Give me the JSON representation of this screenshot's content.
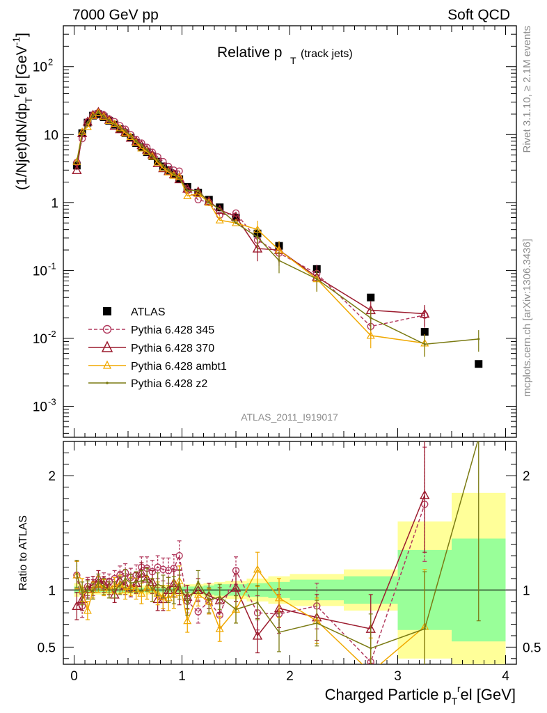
{
  "header": {
    "left": "7000 GeV pp",
    "right": "Soft QCD"
  },
  "side_labels": {
    "rivet": "Rivet 3.1.10, ≥ 2.1M events",
    "source": "mcplots.cern.ch [arXiv:1306.3436]"
  },
  "plot_title": {
    "main": "Relative p",
    "sub": "T",
    "suffix": "(track jets)"
  },
  "analysis_id": "ATLAS_2011_I919017",
  "y_label_top": "(1/Njet)dN/dp_T^rel [GeV^-1]",
  "y_label_ratio": "Ratio to ATLAS",
  "x_label": "Charged Particle p_T^rel [GeV]",
  "colors": {
    "data": "#000000",
    "p345": "#b23a5e",
    "p370": "#9c1b2e",
    "ambt1": "#f0a800",
    "z2": "#7a7a12",
    "band_outer": "#ffff99",
    "band_inner": "#99ff99"
  },
  "chart_data": [
    {
      "type": "scatter",
      "panel": "main",
      "title": "Relative pT (track jets)",
      "xlabel": "Charged Particle p_T^rel [GeV]",
      "ylabel": "(1/Njet)dN/dp_T^rel [GeV^-1]",
      "xlim": [
        -0.1,
        4.1
      ],
      "ylim": [
        0.00035,
        400
      ],
      "yscale": "log",
      "y_ticks": [
        "10^-3",
        "10^-2",
        "10^-1",
        "1",
        "10",
        "10^2"
      ],
      "x_ticks": [
        "0",
        "1",
        "2",
        "3",
        "4"
      ],
      "legend_position": "lower-left",
      "series": [
        {
          "name": "ATLAS",
          "style": "square",
          "x": [
            0.025,
            0.075,
            0.125,
            0.175,
            0.225,
            0.275,
            0.325,
            0.375,
            0.425,
            0.475,
            0.525,
            0.575,
            0.625,
            0.675,
            0.725,
            0.775,
            0.825,
            0.875,
            0.925,
            0.975,
            1.05,
            1.15,
            1.25,
            1.35,
            1.5,
            1.7,
            1.9,
            2.25,
            2.75,
            3.25,
            3.75
          ],
          "y": [
            3.5,
            10.5,
            15,
            19,
            20,
            18,
            16,
            14,
            12,
            10.5,
            9,
            7.5,
            6.5,
            5.5,
            4.8,
            4.0,
            3.4,
            3.0,
            2.6,
            2.2,
            1.7,
            1.4,
            1.1,
            0.85,
            0.6,
            0.35,
            0.23,
            0.105,
            0.04,
            0.0125,
            0.0042
          ]
        },
        {
          "name": "Pythia 6.428 345",
          "style": "circle-dashed",
          "x": [
            0.025,
            0.075,
            0.125,
            0.175,
            0.225,
            0.275,
            0.325,
            0.375,
            0.425,
            0.475,
            0.525,
            0.575,
            0.625,
            0.675,
            0.725,
            0.775,
            0.825,
            0.875,
            0.925,
            0.975,
            1.05,
            1.15,
            1.25,
            1.35,
            1.5,
            1.7,
            1.9,
            2.25,
            2.75,
            3.25
          ],
          "y": [
            3.9,
            8.7,
            15.5,
            19.5,
            21,
            19.5,
            17,
            15.5,
            13.5,
            12,
            10,
            8.5,
            7.5,
            6.5,
            5.5,
            4.7,
            4.0,
            3.4,
            3.0,
            2.9,
            1.5,
            1.1,
            1.0,
            0.65,
            0.7,
            0.28,
            0.18,
            0.09,
            0.015,
            0.022
          ]
        },
        {
          "name": "Pythia 6.428 370",
          "style": "triangle-solid",
          "x": [
            0.025,
            0.075,
            0.125,
            0.175,
            0.225,
            0.275,
            0.325,
            0.375,
            0.425,
            0.475,
            0.525,
            0.575,
            0.625,
            0.675,
            0.725,
            0.775,
            0.825,
            0.875,
            0.925,
            0.975,
            1.05,
            1.15,
            1.25,
            1.35,
            1.5,
            1.7,
            1.9,
            2.25,
            2.75,
            3.25
          ],
          "y": [
            3.0,
            10.5,
            15.5,
            19.5,
            21.5,
            19,
            16.5,
            13.5,
            12,
            11,
            9,
            8,
            7,
            6,
            5.1,
            3.8,
            3.2,
            2.9,
            2.6,
            2.2,
            1.6,
            1.45,
            1.05,
            0.78,
            0.62,
            0.21,
            0.2,
            0.08,
            0.026,
            0.023
          ]
        },
        {
          "name": "Pythia 6.428 ambt1",
          "style": "triangle-solid",
          "x": [
            0.025,
            0.075,
            0.125,
            0.175,
            0.225,
            0.275,
            0.325,
            0.375,
            0.425,
            0.475,
            0.525,
            0.575,
            0.625,
            0.675,
            0.725,
            0.775,
            0.825,
            0.875,
            0.925,
            0.975,
            1.05,
            1.15,
            1.25,
            1.35,
            1.5,
            1.7,
            1.9,
            2.25,
            2.75,
            3.25
          ],
          "y": [
            4.0,
            11,
            13,
            19,
            21,
            18.5,
            16,
            14.5,
            12.5,
            10.5,
            9.3,
            7.6,
            6.3,
            5.6,
            4.8,
            3.9,
            3.2,
            2.8,
            2.5,
            2.4,
            1.25,
            1.35,
            1.0,
            0.55,
            0.5,
            0.4,
            0.2,
            0.075,
            0.011,
            0.0085
          ]
        },
        {
          "name": "Pythia 6.428 z2",
          "style": "dot-solid",
          "x": [
            0.025,
            0.075,
            0.125,
            0.175,
            0.225,
            0.275,
            0.325,
            0.375,
            0.425,
            0.475,
            0.525,
            0.575,
            0.625,
            0.675,
            0.725,
            0.775,
            0.825,
            0.875,
            0.925,
            0.975,
            1.05,
            1.15,
            1.25,
            1.35,
            1.5,
            1.7,
            1.9,
            2.25,
            2.75,
            3.25,
            3.75
          ],
          "y": [
            4.0,
            10.2,
            15,
            18.8,
            21.5,
            18.5,
            16,
            14,
            12.5,
            11.5,
            9.5,
            8,
            7,
            6,
            4.8,
            4.2,
            3.5,
            3.0,
            2.6,
            2.3,
            1.5,
            1.5,
            1.0,
            0.8,
            0.5,
            0.31,
            0.14,
            0.075,
            0.02,
            0.0082,
            0.0098
          ]
        }
      ]
    },
    {
      "type": "line",
      "panel": "ratio",
      "ylabel": "Ratio to ATLAS",
      "xlim": [
        -0.1,
        4.1
      ],
      "ylim": [
        0.35,
        2.3
      ],
      "y_ticks": [
        "0.5",
        "1",
        "2"
      ],
      "reference_line": 1,
      "bands": {
        "x_edges": [
          0,
          0.05,
          0.1,
          0.15,
          0.2,
          0.25,
          0.3,
          0.35,
          0.4,
          0.45,
          0.5,
          0.55,
          0.6,
          0.65,
          0.7,
          0.75,
          0.8,
          0.85,
          0.9,
          0.95,
          1.0,
          1.1,
          1.2,
          1.3,
          1.4,
          1.6,
          1.8,
          2.0,
          2.5,
          3.0,
          3.5,
          4.0
        ],
        "outer_half_width": [
          0.06,
          0.04,
          0.04,
          0.04,
          0.04,
          0.04,
          0.04,
          0.04,
          0.04,
          0.04,
          0.04,
          0.04,
          0.04,
          0.04,
          0.04,
          0.04,
          0.04,
          0.04,
          0.04,
          0.04,
          0.05,
          0.05,
          0.06,
          0.07,
          0.08,
          0.1,
          0.12,
          0.14,
          0.18,
          0.6,
          0.85
        ],
        "inner_half_width": [
          0.03,
          0.02,
          0.02,
          0.02,
          0.02,
          0.02,
          0.02,
          0.02,
          0.02,
          0.02,
          0.02,
          0.02,
          0.02,
          0.02,
          0.02,
          0.02,
          0.02,
          0.02,
          0.02,
          0.02,
          0.03,
          0.03,
          0.04,
          0.05,
          0.05,
          0.06,
          0.07,
          0.09,
          0.12,
          0.35,
          0.45
        ]
      },
      "series": [
        {
          "name": "Pythia 6.428 345",
          "x": [
            0.025,
            0.075,
            0.125,
            0.175,
            0.225,
            0.275,
            0.325,
            0.375,
            0.425,
            0.475,
            0.525,
            0.575,
            0.625,
            0.675,
            0.725,
            0.775,
            0.825,
            0.875,
            0.925,
            0.975,
            1.05,
            1.15,
            1.25,
            1.35,
            1.5,
            1.7,
            1.9,
            2.25,
            2.75,
            3.25
          ],
          "y": [
            1.13,
            0.86,
            1.03,
            1.02,
            1.05,
            1.08,
            1.07,
            1.1,
            1.13,
            1.15,
            1.11,
            1.13,
            1.2,
            1.19,
            1.16,
            1.2,
            1.18,
            1.17,
            1.19,
            1.3,
            0.9,
            0.81,
            0.9,
            0.78,
            1.17,
            0.8,
            0.79,
            0.86,
            0.37,
            1.75
          ],
          "err": [
            0.12,
            0.1,
            0.08,
            0.07,
            0.07,
            0.07,
            0.07,
            0.07,
            0.08,
            0.08,
            0.08,
            0.09,
            0.09,
            0.1,
            0.1,
            0.1,
            0.1,
            0.11,
            0.12,
            0.13,
            0.1,
            0.1,
            0.11,
            0.11,
            0.12,
            0.15,
            0.17,
            0.2,
            0.3,
            0.5
          ]
        },
        {
          "name": "Pythia 6.428 370",
          "x": [
            0.025,
            0.075,
            0.125,
            0.175,
            0.225,
            0.275,
            0.325,
            0.375,
            0.425,
            0.475,
            0.525,
            0.575,
            0.625,
            0.675,
            0.725,
            0.775,
            0.825,
            0.875,
            0.925,
            0.975,
            1.05,
            1.15,
            1.25,
            1.35,
            1.5,
            1.7,
            1.9,
            2.25,
            2.75,
            3.25
          ],
          "y": [
            0.86,
            0.92,
            1.01,
            1.05,
            1.1,
            1.05,
            1.03,
            0.96,
            1.08,
            1.04,
            1.02,
            1.06,
            1.15,
            1.1,
            1.07,
            0.92,
            0.92,
            1.0,
            1.06,
            1.0,
            0.94,
            1.0,
            0.95,
            0.91,
            1.02,
            0.6,
            0.84,
            0.76,
            0.66,
            1.83
          ],
          "err": [
            0.12,
            0.1,
            0.08,
            0.07,
            0.07,
            0.07,
            0.07,
            0.07,
            0.08,
            0.08,
            0.08,
            0.09,
            0.09,
            0.1,
            0.1,
            0.1,
            0.1,
            0.11,
            0.12,
            0.13,
            0.1,
            0.1,
            0.11,
            0.11,
            0.12,
            0.15,
            0.17,
            0.2,
            0.3,
            0.5
          ]
        },
        {
          "name": "Pythia 6.428 ambt1",
          "x": [
            0.025,
            0.075,
            0.125,
            0.175,
            0.225,
            0.275,
            0.325,
            0.375,
            0.425,
            0.475,
            0.525,
            0.575,
            0.625,
            0.675,
            0.725,
            0.775,
            0.825,
            0.875,
            0.925,
            0.975,
            1.05,
            1.15,
            1.25,
            1.35,
            1.5,
            1.7,
            1.9,
            2.25,
            2.75,
            3.25
          ],
          "y": [
            1.13,
            1.0,
            0.82,
            1.0,
            1.05,
            1.02,
            1.0,
            1.04,
            1.05,
            1.0,
            1.03,
            1.01,
            0.97,
            1.02,
            1.0,
            0.97,
            0.94,
            0.93,
            0.96,
            1.08,
            0.73,
            0.96,
            0.9,
            0.66,
            0.83,
            1.18,
            0.93,
            0.73,
            0.28,
            0.68
          ],
          "err": [
            0.12,
            0.1,
            0.08,
            0.07,
            0.07,
            0.07,
            0.07,
            0.07,
            0.08,
            0.08,
            0.08,
            0.09,
            0.09,
            0.1,
            0.1,
            0.1,
            0.1,
            0.11,
            0.12,
            0.13,
            0.1,
            0.1,
            0.11,
            0.11,
            0.12,
            0.15,
            0.17,
            0.2,
            0.3,
            0.5
          ]
        },
        {
          "name": "Pythia 6.428 z2",
          "x": [
            0.025,
            0.075,
            0.125,
            0.175,
            0.225,
            0.275,
            0.325,
            0.375,
            0.425,
            0.475,
            0.525,
            0.575,
            0.625,
            0.675,
            0.725,
            0.775,
            0.825,
            0.875,
            0.925,
            0.975,
            1.05,
            1.15,
            1.25,
            1.35,
            1.5,
            1.7,
            1.9,
            2.25,
            2.75,
            3.25,
            3.75
          ],
          "y": [
            1.14,
            0.97,
            1.0,
            0.99,
            1.07,
            1.03,
            1.0,
            1.0,
            1.04,
            1.1,
            1.06,
            1.07,
            1.08,
            1.09,
            1.0,
            1.05,
            1.03,
            1.0,
            1.0,
            1.05,
            0.88,
            1.07,
            0.91,
            0.94,
            0.83,
            0.89,
            0.63,
            0.71,
            0.49,
            0.66,
            2.33
          ],
          "err": [
            0.12,
            0.1,
            0.08,
            0.07,
            0.07,
            0.07,
            0.07,
            0.07,
            0.08,
            0.08,
            0.08,
            0.09,
            0.09,
            0.1,
            0.1,
            0.1,
            0.1,
            0.11,
            0.12,
            0.13,
            0.1,
            0.1,
            0.11,
            0.11,
            0.12,
            0.15,
            0.17,
            0.2,
            0.3,
            0.5,
            1.6
          ]
        }
      ]
    }
  ]
}
